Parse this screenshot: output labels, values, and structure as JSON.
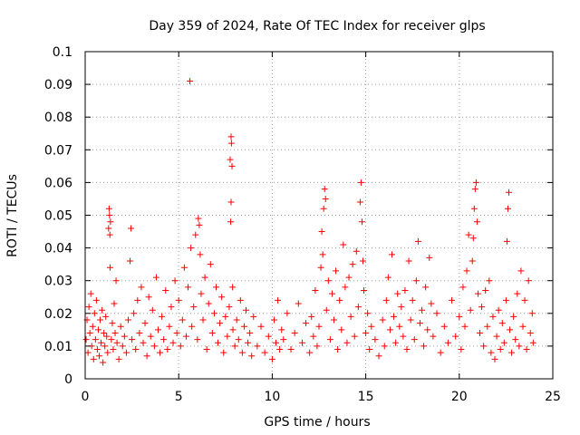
{
  "chart_data": {
    "type": "scatter",
    "title": "Day 359 of 2024, Rate Of TEC Index for receiver glps",
    "xlabel": "GPS time / hours",
    "ylabel": "ROTI / TECUs",
    "xlim": [
      0,
      25
    ],
    "ylim": [
      0,
      0.1
    ],
    "xticks": [
      0,
      5,
      10,
      15,
      20,
      25
    ],
    "xtick_labels": [
      "0",
      "5",
      "10",
      "15",
      "20",
      "25"
    ],
    "yticks": [
      0,
      0.01,
      0.02,
      0.03,
      0.04,
      0.05,
      0.06,
      0.07,
      0.08,
      0.09,
      0.1
    ],
    "ytick_labels": [
      "0",
      "0.01",
      "0.02",
      "0.03",
      "0.04",
      "0.05",
      "0.06",
      "0.07",
      "0.08",
      "0.09",
      "0.1"
    ],
    "grid": true,
    "marker": "+",
    "series": [
      {
        "name": "ROTI",
        "color": "#ff0000",
        "points": [
          [
            0.05,
            0.012
          ],
          [
            0.1,
            0.018
          ],
          [
            0.15,
            0.008
          ],
          [
            0.2,
            0.022
          ],
          [
            0.25,
            0.014
          ],
          [
            0.3,
            0.026
          ],
          [
            0.35,
            0.01
          ],
          [
            0.4,
            0.016
          ],
          [
            0.45,
            0.006
          ],
          [
            0.5,
            0.02
          ],
          [
            0.55,
            0.012
          ],
          [
            0.6,
            0.024
          ],
          [
            0.65,
            0.009
          ],
          [
            0.7,
            0.015
          ],
          [
            0.75,
            0.007
          ],
          [
            0.8,
            0.018
          ],
          [
            0.85,
            0.011
          ],
          [
            0.9,
            0.021
          ],
          [
            0.95,
            0.005
          ],
          [
            1.0,
            0.014
          ],
          [
            1.05,
            0.01
          ],
          [
            1.1,
            0.019
          ],
          [
            1.15,
            0.013
          ],
          [
            1.2,
            0.008
          ],
          [
            1.25,
            0.046
          ],
          [
            1.3,
            0.05
          ],
          [
            1.32,
            0.044
          ],
          [
            1.35,
            0.048
          ],
          [
            1.28,
            0.052
          ],
          [
            1.33,
            0.034
          ],
          [
            1.4,
            0.012
          ],
          [
            1.45,
            0.017
          ],
          [
            1.5,
            0.009
          ],
          [
            1.55,
            0.023
          ],
          [
            1.6,
            0.014
          ],
          [
            1.65,
            0.03
          ],
          [
            1.7,
            0.011
          ],
          [
            1.8,
            0.006
          ],
          [
            1.9,
            0.016
          ],
          [
            2.0,
            0.01
          ],
          [
            2.1,
            0.013
          ],
          [
            2.2,
            0.008
          ],
          [
            2.3,
            0.018
          ],
          [
            2.4,
            0.036
          ],
          [
            2.45,
            0.046
          ],
          [
            2.5,
            0.012
          ],
          [
            2.6,
            0.02
          ],
          [
            2.7,
            0.009
          ],
          [
            2.8,
            0.024
          ],
          [
            2.9,
            0.014
          ],
          [
            3.0,
            0.028
          ],
          [
            3.1,
            0.011
          ],
          [
            3.2,
            0.017
          ],
          [
            3.3,
            0.007
          ],
          [
            3.4,
            0.025
          ],
          [
            3.5,
            0.013
          ],
          [
            3.6,
            0.021
          ],
          [
            3.7,
            0.01
          ],
          [
            3.8,
            0.031
          ],
          [
            3.9,
            0.015
          ],
          [
            4.0,
            0.008
          ],
          [
            4.1,
            0.019
          ],
          [
            4.2,
            0.012
          ],
          [
            4.3,
            0.027
          ],
          [
            4.4,
            0.009
          ],
          [
            4.5,
            0.016
          ],
          [
            4.6,
            0.022
          ],
          [
            4.7,
            0.011
          ],
          [
            4.8,
            0.03
          ],
          [
            4.9,
            0.014
          ],
          [
            5.0,
            0.024
          ],
          [
            5.1,
            0.01
          ],
          [
            5.2,
            0.018
          ],
          [
            5.3,
            0.034
          ],
          [
            5.4,
            0.013
          ],
          [
            5.5,
            0.028
          ],
          [
            5.6,
            0.091
          ],
          [
            5.65,
            0.04
          ],
          [
            5.7,
            0.016
          ],
          [
            5.8,
            0.022
          ],
          [
            5.9,
            0.044
          ],
          [
            6.0,
            0.012
          ],
          [
            6.05,
            0.049
          ],
          [
            6.1,
            0.047
          ],
          [
            6.15,
            0.038
          ],
          [
            6.2,
            0.026
          ],
          [
            6.3,
            0.018
          ],
          [
            6.4,
            0.031
          ],
          [
            6.5,
            0.009
          ],
          [
            6.6,
            0.023
          ],
          [
            6.7,
            0.035
          ],
          [
            6.8,
            0.014
          ],
          [
            6.9,
            0.02
          ],
          [
            7.0,
            0.028
          ],
          [
            7.1,
            0.011
          ],
          [
            7.2,
            0.017
          ],
          [
            7.3,
            0.025
          ],
          [
            7.4,
            0.008
          ],
          [
            7.5,
            0.019
          ],
          [
            7.6,
            0.013
          ],
          [
            7.7,
            0.022
          ],
          [
            7.75,
            0.067
          ],
          [
            7.8,
            0.074
          ],
          [
            7.82,
            0.072
          ],
          [
            7.85,
            0.065
          ],
          [
            7.78,
            0.048
          ],
          [
            7.8,
            0.054
          ],
          [
            7.88,
            0.028
          ],
          [
            7.9,
            0.015
          ],
          [
            8.0,
            0.01
          ],
          [
            8.1,
            0.018
          ],
          [
            8.2,
            0.012
          ],
          [
            8.3,
            0.024
          ],
          [
            8.4,
            0.008
          ],
          [
            8.5,
            0.016
          ],
          [
            8.6,
            0.021
          ],
          [
            8.7,
            0.011
          ],
          [
            8.8,
            0.014
          ],
          [
            8.9,
            0.007
          ],
          [
            9.0,
            0.019
          ],
          [
            9.2,
            0.01
          ],
          [
            9.4,
            0.016
          ],
          [
            9.6,
            0.008
          ],
          [
            9.8,
            0.013
          ],
          [
            10.0,
            0.006
          ],
          [
            10.1,
            0.018
          ],
          [
            10.2,
            0.011
          ],
          [
            10.3,
            0.024
          ],
          [
            10.4,
            0.009
          ],
          [
            10.5,
            0.015
          ],
          [
            10.6,
            0.012
          ],
          [
            10.8,
            0.02
          ],
          [
            11.0,
            0.009
          ],
          [
            11.2,
            0.014
          ],
          [
            11.4,
            0.023
          ],
          [
            11.6,
            0.011
          ],
          [
            11.8,
            0.017
          ],
          [
            12.0,
            0.008
          ],
          [
            12.1,
            0.019
          ],
          [
            12.2,
            0.013
          ],
          [
            12.3,
            0.027
          ],
          [
            12.4,
            0.01
          ],
          [
            12.5,
            0.016
          ],
          [
            12.6,
            0.034
          ],
          [
            12.65,
            0.045
          ],
          [
            12.7,
            0.038
          ],
          [
            12.75,
            0.052
          ],
          [
            12.8,
            0.058
          ],
          [
            12.85,
            0.055
          ],
          [
            12.9,
            0.021
          ],
          [
            13.0,
            0.03
          ],
          [
            13.1,
            0.012
          ],
          [
            13.2,
            0.026
          ],
          [
            13.3,
            0.018
          ],
          [
            13.4,
            0.033
          ],
          [
            13.5,
            0.009
          ],
          [
            13.6,
            0.024
          ],
          [
            13.7,
            0.015
          ],
          [
            13.8,
            0.041
          ],
          [
            13.9,
            0.028
          ],
          [
            14.0,
            0.011
          ],
          [
            14.1,
            0.031
          ],
          [
            14.2,
            0.019
          ],
          [
            14.3,
            0.035
          ],
          [
            14.4,
            0.013
          ],
          [
            14.5,
            0.039
          ],
          [
            14.6,
            0.022
          ],
          [
            14.7,
            0.054
          ],
          [
            14.75,
            0.06
          ],
          [
            14.8,
            0.048
          ],
          [
            14.85,
            0.036
          ],
          [
            14.9,
            0.027
          ],
          [
            15.0,
            0.014
          ],
          [
            15.1,
            0.02
          ],
          [
            15.2,
            0.009
          ],
          [
            15.3,
            0.016
          ],
          [
            15.5,
            0.012
          ],
          [
            15.7,
            0.007
          ],
          [
            15.9,
            0.018
          ],
          [
            16.0,
            0.01
          ],
          [
            16.1,
            0.024
          ],
          [
            16.2,
            0.031
          ],
          [
            16.3,
            0.015
          ],
          [
            16.4,
            0.038
          ],
          [
            16.5,
            0.019
          ],
          [
            16.6,
            0.011
          ],
          [
            16.7,
            0.026
          ],
          [
            16.8,
            0.016
          ],
          [
            16.9,
            0.022
          ],
          [
            17.0,
            0.013
          ],
          [
            17.1,
            0.027
          ],
          [
            17.2,
            0.009
          ],
          [
            17.3,
            0.036
          ],
          [
            17.4,
            0.018
          ],
          [
            17.5,
            0.024
          ],
          [
            17.6,
            0.012
          ],
          [
            17.7,
            0.03
          ],
          [
            17.8,
            0.042
          ],
          [
            17.9,
            0.017
          ],
          [
            18.0,
            0.021
          ],
          [
            18.1,
            0.01
          ],
          [
            18.2,
            0.028
          ],
          [
            18.3,
            0.015
          ],
          [
            18.4,
            0.037
          ],
          [
            18.5,
            0.023
          ],
          [
            18.6,
            0.013
          ],
          [
            18.8,
            0.02
          ],
          [
            19.0,
            0.008
          ],
          [
            19.2,
            0.016
          ],
          [
            19.4,
            0.011
          ],
          [
            19.6,
            0.024
          ],
          [
            19.8,
            0.013
          ],
          [
            20.0,
            0.019
          ],
          [
            20.1,
            0.009
          ],
          [
            20.2,
            0.028
          ],
          [
            20.3,
            0.016
          ],
          [
            20.4,
            0.033
          ],
          [
            20.5,
            0.044
          ],
          [
            20.6,
            0.021
          ],
          [
            20.7,
            0.036
          ],
          [
            20.75,
            0.043
          ],
          [
            20.8,
            0.052
          ],
          [
            20.85,
            0.058
          ],
          [
            20.9,
            0.06
          ],
          [
            20.95,
            0.048
          ],
          [
            21.0,
            0.026
          ],
          [
            21.1,
            0.014
          ],
          [
            21.2,
            0.022
          ],
          [
            21.3,
            0.01
          ],
          [
            21.4,
            0.027
          ],
          [
            21.5,
            0.016
          ],
          [
            21.6,
            0.03
          ],
          [
            21.7,
            0.008
          ],
          [
            21.8,
            0.019
          ],
          [
            21.9,
            0.006
          ],
          [
            22.0,
            0.013
          ],
          [
            22.1,
            0.021
          ],
          [
            22.2,
            0.009
          ],
          [
            22.3,
            0.017
          ],
          [
            22.4,
            0.011
          ],
          [
            22.5,
            0.024
          ],
          [
            22.55,
            0.042
          ],
          [
            22.6,
            0.052
          ],
          [
            22.65,
            0.057
          ],
          [
            22.7,
            0.015
          ],
          [
            22.8,
            0.008
          ],
          [
            22.9,
            0.019
          ],
          [
            23.0,
            0.012
          ],
          [
            23.1,
            0.026
          ],
          [
            23.2,
            0.01
          ],
          [
            23.3,
            0.033
          ],
          [
            23.4,
            0.016
          ],
          [
            23.5,
            0.024
          ],
          [
            23.6,
            0.009
          ],
          [
            23.7,
            0.03
          ],
          [
            23.8,
            0.014
          ],
          [
            23.9,
            0.02
          ],
          [
            23.95,
            0.011
          ]
        ]
      }
    ]
  }
}
